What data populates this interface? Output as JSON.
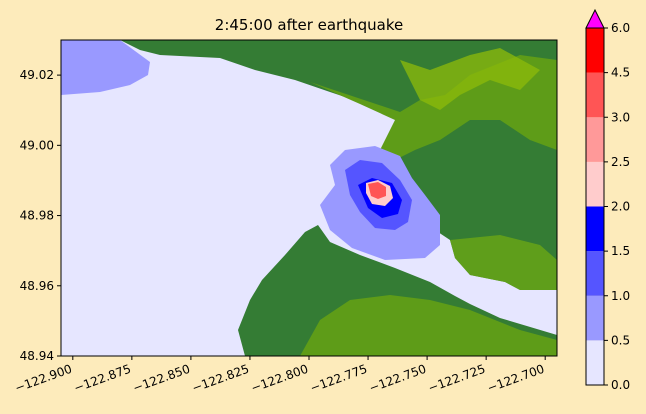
{
  "chart_data": {
    "type": "heatmap",
    "title": "2:45:00 after earthquake",
    "xlabel": "",
    "ylabel": "",
    "xlim": [
      -122.905,
      -122.695
    ],
    "ylim": [
      48.94,
      49.03
    ],
    "x_ticks": [
      -122.9,
      -122.875,
      -122.85,
      -122.825,
      -122.8,
      -122.775,
      -122.75,
      -122.725,
      -122.7
    ],
    "x_tick_labels": [
      "−122.900",
      "−122.875",
      "−122.850",
      "−122.825",
      "−122.800",
      "−122.775",
      "−122.750",
      "−122.725",
      "−122.700"
    ],
    "y_ticks": [
      48.94,
      48.96,
      48.98,
      49.0,
      49.02
    ],
    "y_tick_labels": [
      "48.94",
      "48.96",
      "48.98",
      "49.00",
      "49.02"
    ],
    "colorbar": {
      "levels": [
        0.0,
        0.5,
        1.0,
        1.5,
        2.0,
        2.5,
        3.0,
        4.5,
        6.0
      ],
      "tick_labels": [
        "0.0",
        "0.5",
        "1.0",
        "1.5",
        "2.0",
        "2.5",
        "3.0",
        "4.5",
        "6.0"
      ],
      "colors": [
        "#e6e6ff",
        "#9999ff",
        "#5555ff",
        "#0000ff",
        "#ffcccc",
        "#ff9999",
        "#ff5555",
        "#ff0000"
      ],
      "extend_max_color": "#ff00ff",
      "extend": "max"
    },
    "land_colors": [
      "#347c34",
      "#5e9c18",
      "#8dbb0a"
    ],
    "grid": false
  }
}
